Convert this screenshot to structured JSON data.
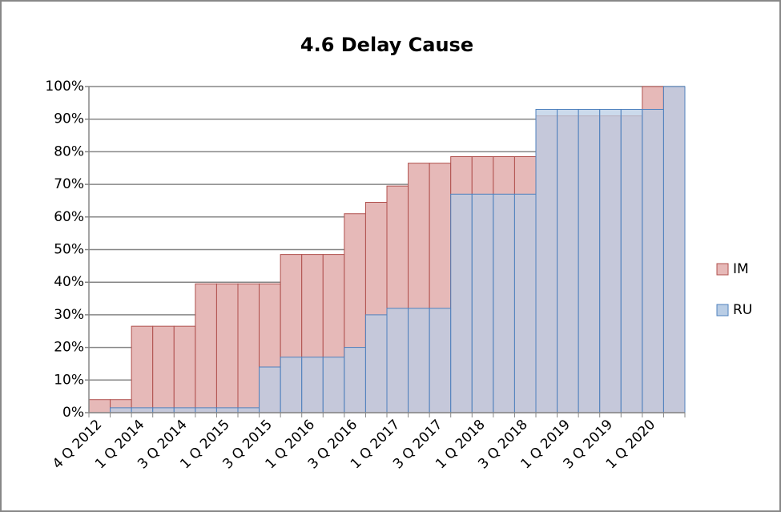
{
  "chart_data": {
    "type": "bar",
    "title": "4.6 Delay Cause",
    "categories": [
      "4 Q 2012",
      null,
      "1 Q 2014",
      null,
      "3 Q 2014",
      null,
      "1 Q 2015",
      null,
      "3 Q 2015",
      null,
      "1 Q 2016",
      null,
      "3 Q 2016",
      null,
      "1 Q 2017",
      null,
      "3 Q 2017",
      null,
      "1 Q 2018",
      null,
      "3 Q 2018",
      null,
      "1 Q 2019",
      null,
      "3 Q 2019",
      null,
      "1 Q 2020",
      null
    ],
    "series": [
      {
        "name": "IM",
        "color": "#e6b9b8",
        "values": [
          4,
          4,
          26.5,
          26.5,
          26.5,
          39.5,
          39.5,
          39.5,
          39.5,
          48.5,
          48.5,
          48.5,
          61,
          64.5,
          69.5,
          76.5,
          76.5,
          78.5,
          78.5,
          78.5,
          78.5,
          91,
          91,
          91,
          91,
          91,
          100,
          100
        ]
      },
      {
        "name": "RU",
        "color": "#b9cde5",
        "values": [
          0,
          1.5,
          1.5,
          1.5,
          1.5,
          1.5,
          1.5,
          1.5,
          14,
          17,
          17,
          17,
          20,
          30,
          32,
          32,
          32,
          67,
          67,
          67,
          67,
          93,
          93,
          93,
          93,
          93,
          93,
          100
        ]
      }
    ],
    "ylim": [
      0,
      100
    ],
    "yticks": [
      {
        "value": 0,
        "label": "0%"
      },
      {
        "value": 10,
        "label": "10%"
      },
      {
        "value": 20,
        "label": "20%"
      },
      {
        "value": 30,
        "label": "30%"
      },
      {
        "value": 40,
        "label": "40%"
      },
      {
        "value": 50,
        "label": "50%"
      },
      {
        "value": 60,
        "label": "60%"
      },
      {
        "value": 70,
        "label": "70%"
      },
      {
        "value": 80,
        "label": "80%"
      },
      {
        "value": 90,
        "label": "90%"
      },
      {
        "value": 100,
        "label": "100%"
      }
    ],
    "grid": true,
    "overlap": true,
    "legend": "right"
  }
}
